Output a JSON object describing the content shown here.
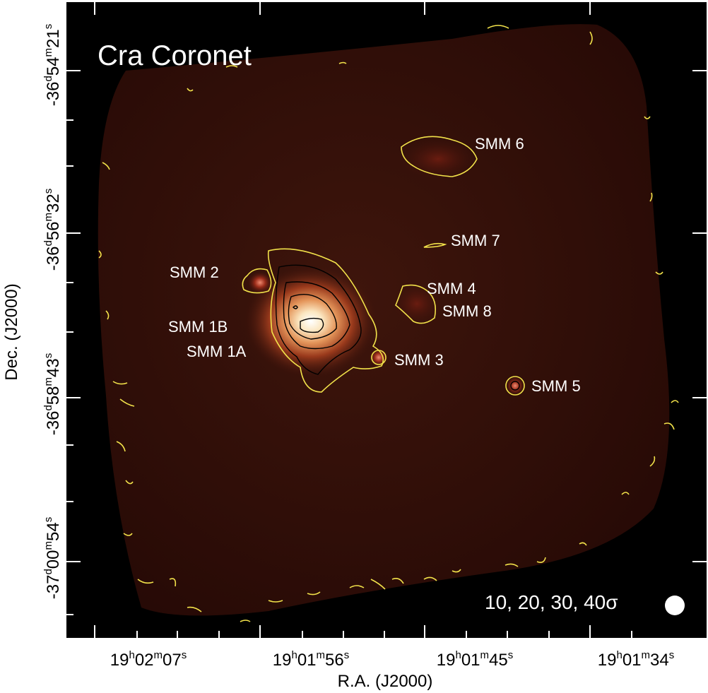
{
  "figure": {
    "title": "Cra Coronet",
    "contour_levels_label": "10, 20, 30, 40σ",
    "beam_marker": "beam"
  },
  "axes": {
    "x_label": "R.A. (J2000)",
    "y_label": "Dec. (J2000)",
    "x_ticks": [
      {
        "h": "19",
        "m": "02",
        "s": "07"
      },
      {
        "h": "19",
        "m": "01",
        "s": "56"
      },
      {
        "h": "19",
        "m": "01",
        "s": "45"
      },
      {
        "h": "19",
        "m": "01",
        "s": "34"
      }
    ],
    "y_ticks": [
      {
        "d": "-36",
        "m": "54",
        "s": "21"
      },
      {
        "d": "-36",
        "m": "56",
        "s": "32"
      },
      {
        "d": "-36",
        "m": "58",
        "s": "43"
      },
      {
        "d": "-37",
        "m": "00",
        "s": "54"
      }
    ]
  },
  "sources": [
    {
      "name": "SMM 6"
    },
    {
      "name": "SMM 7"
    },
    {
      "name": "SMM 2"
    },
    {
      "name": "SMM 4"
    },
    {
      "name": "SMM 8"
    },
    {
      "name": "SMM 1B"
    },
    {
      "name": "SMM 1A"
    },
    {
      "name": "SMM 3"
    },
    {
      "name": "SMM 5"
    }
  ],
  "colors": {
    "background": "#000000",
    "map_dark": "#2a0a06",
    "map_mid": "#3a120a",
    "contour_outer": "#f2e24a",
    "contour_inner": "#000000",
    "label_text": "#ffffff",
    "axis_text": "#000000"
  }
}
